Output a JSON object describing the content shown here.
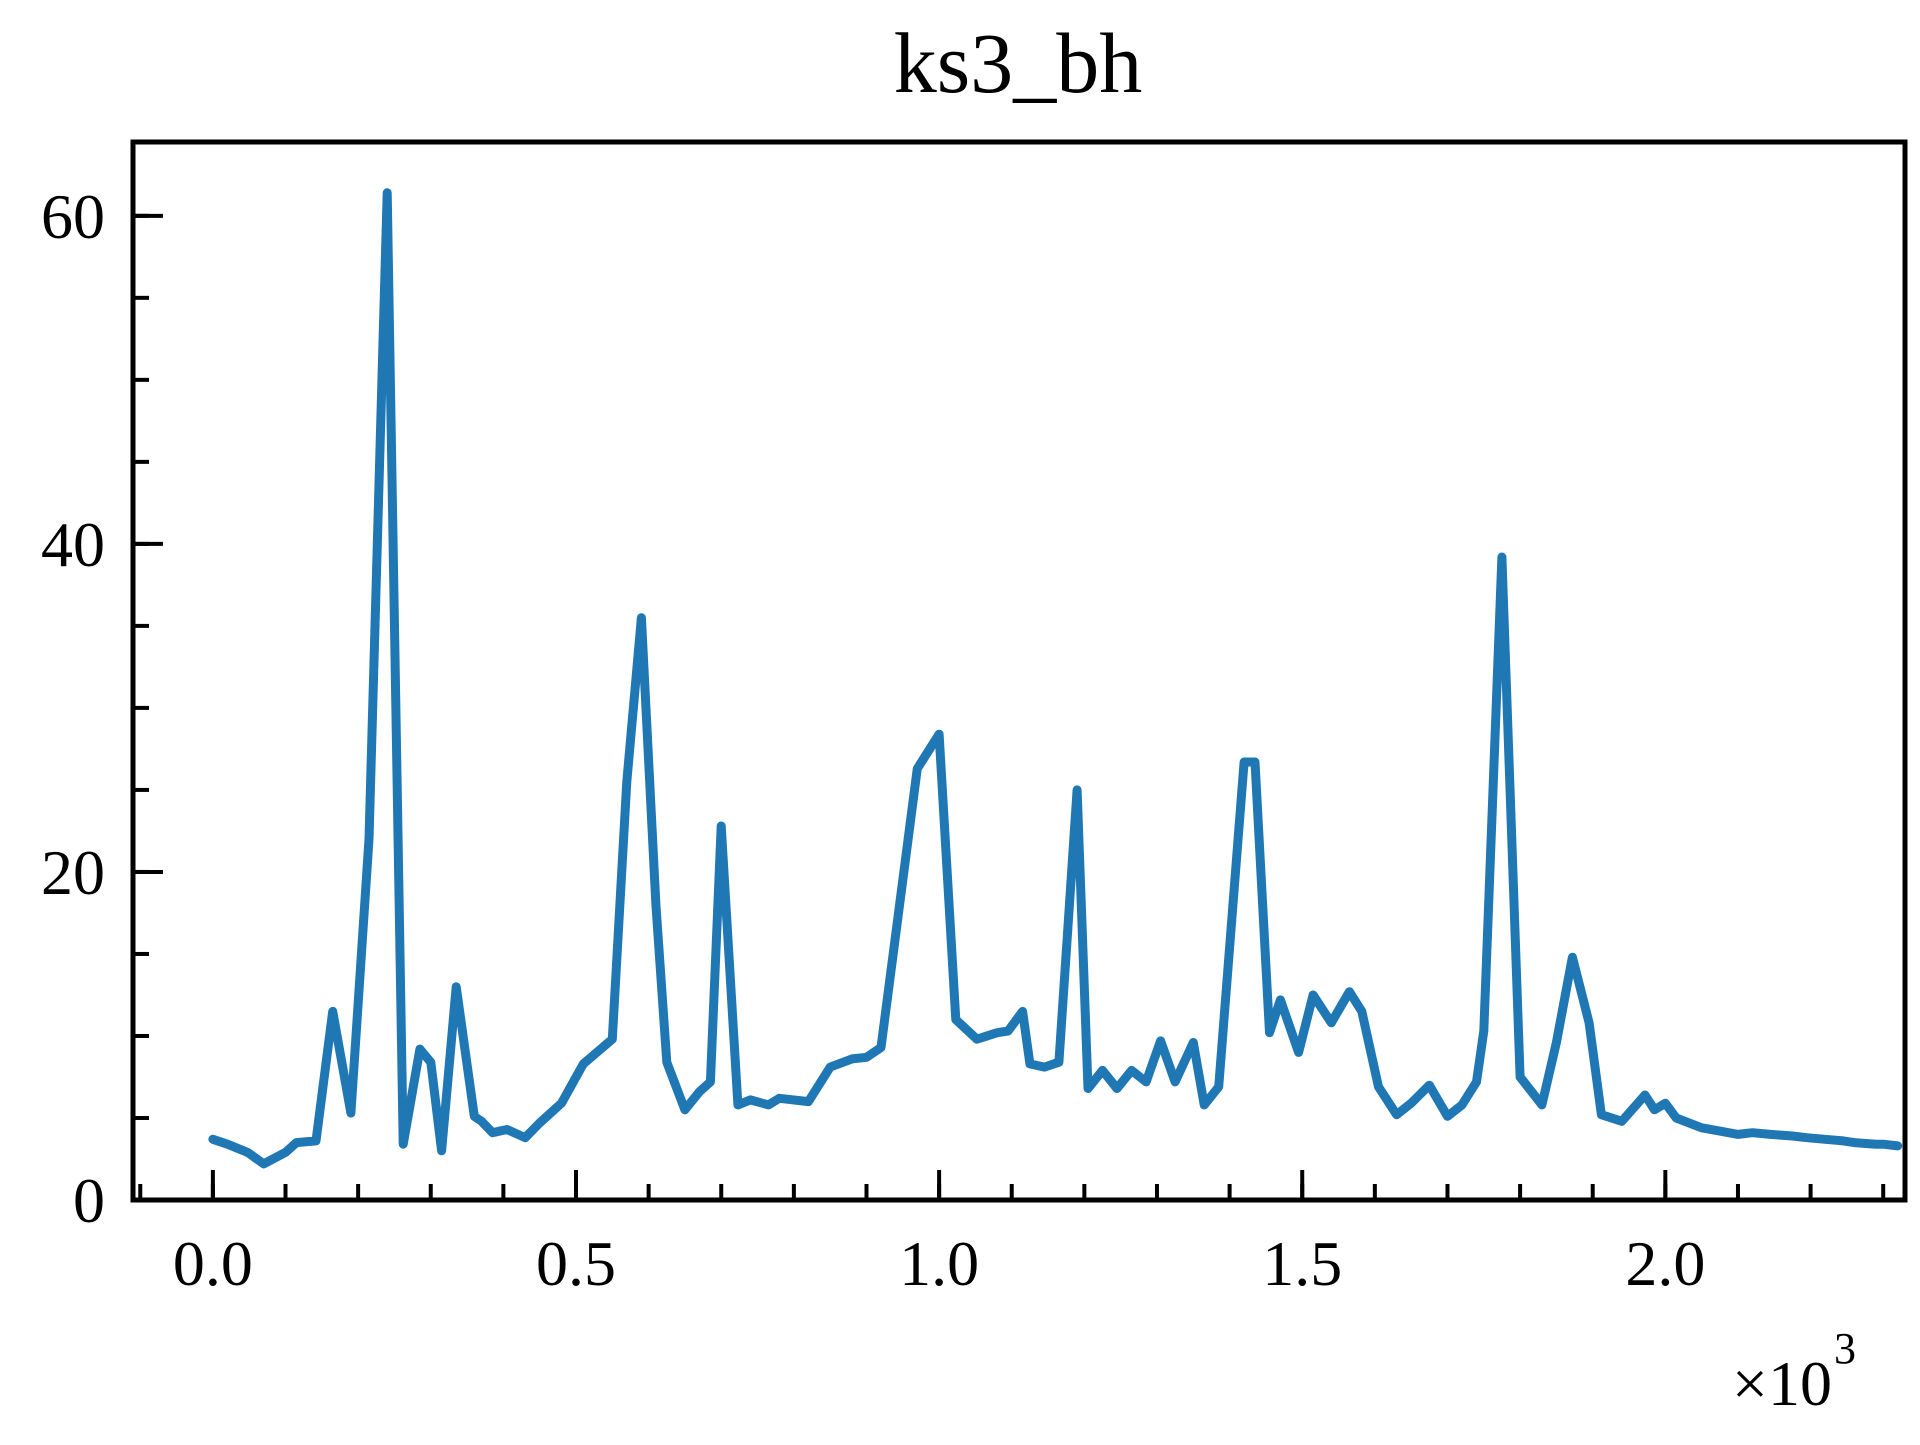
{
  "chart_data": {
    "type": "line",
    "title": "ks3_bh",
    "xlabel": "",
    "ylabel": "",
    "x_offset_label": {
      "base": "×10",
      "exponent": "3"
    },
    "xlim": [
      -0.11,
      2.33
    ],
    "ylim": [
      0,
      64.5
    ],
    "x_ticks": [
      0.0,
      0.5,
      1.0,
      1.5,
      2.0
    ],
    "x_tick_labels": [
      "0.0",
      "0.5",
      "1.0",
      "1.5",
      "2.0"
    ],
    "x_minor_step": 0.1,
    "y_ticks": [
      0,
      20,
      40,
      60
    ],
    "y_tick_labels": [
      "0",
      "20",
      "40",
      "60"
    ],
    "y_minor_step": 5,
    "grid": false,
    "color": "#1f77b4",
    "series": [
      {
        "x": [
          0.0,
          0.02,
          0.048,
          0.07,
          0.1,
          0.115,
          0.142,
          0.165,
          0.19,
          0.215,
          0.24,
          0.262,
          0.285,
          0.3,
          0.315,
          0.335,
          0.36,
          0.37,
          0.385,
          0.405,
          0.43,
          0.45,
          0.48,
          0.51,
          0.55,
          0.57,
          0.59,
          0.61,
          0.625,
          0.65,
          0.67,
          0.685,
          0.7,
          0.723,
          0.74,
          0.765,
          0.78,
          0.82,
          0.85,
          0.88,
          0.9,
          0.92,
          0.97,
          1.0,
          1.023,
          1.052,
          1.08,
          1.095,
          1.115,
          1.125,
          1.145,
          1.165,
          1.19,
          1.205,
          1.225,
          1.245,
          1.265,
          1.285,
          1.305,
          1.325,
          1.35,
          1.365,
          1.385,
          1.42,
          1.435,
          1.455,
          1.47,
          1.495,
          1.515,
          1.54,
          1.565,
          1.582,
          1.605,
          1.63,
          1.65,
          1.675,
          1.7,
          1.72,
          1.74,
          1.75,
          1.775,
          1.8,
          1.83,
          1.85,
          1.872,
          1.895,
          1.912,
          1.94,
          1.972,
          1.985,
          2.0,
          2.015,
          2.05,
          2.075,
          2.1,
          2.12,
          2.145,
          2.175,
          2.195,
          2.22,
          2.245,
          2.26,
          2.29,
          2.3,
          2.32
        ],
        "y": [
          3.7,
          3.4,
          2.9,
          2.2,
          2.9,
          3.5,
          3.6,
          11.5,
          5.3,
          22.0,
          61.4,
          3.4,
          9.2,
          8.4,
          3.0,
          13.0,
          5.1,
          4.8,
          4.1,
          4.3,
          3.8,
          4.7,
          5.9,
          8.3,
          9.8,
          25.5,
          35.5,
          18.0,
          8.4,
          5.5,
          6.6,
          7.2,
          22.8,
          5.8,
          6.1,
          5.8,
          6.2,
          6.0,
          8.1,
          8.6,
          8.7,
          9.3,
          26.3,
          28.4,
          11.0,
          9.8,
          10.2,
          10.3,
          11.5,
          8.3,
          8.1,
          8.4,
          25.0,
          6.8,
          7.9,
          6.8,
          7.9,
          7.2,
          9.7,
          7.2,
          9.6,
          5.8,
          6.9,
          26.7,
          26.7,
          10.2,
          12.2,
          9.0,
          12.5,
          10.8,
          12.7,
          11.5,
          6.9,
          5.2,
          5.9,
          7.0,
          5.1,
          5.8,
          7.2,
          10.3,
          39.2,
          7.5,
          5.8,
          9.6,
          14.8,
          10.8,
          5.2,
          4.8,
          6.4,
          5.5,
          5.9,
          5.0,
          4.4,
          4.2,
          4.0,
          4.1,
          4.0,
          3.9,
          3.8,
          3.7,
          3.6,
          3.5,
          3.4,
          3.4,
          3.3
        ]
      }
    ]
  }
}
